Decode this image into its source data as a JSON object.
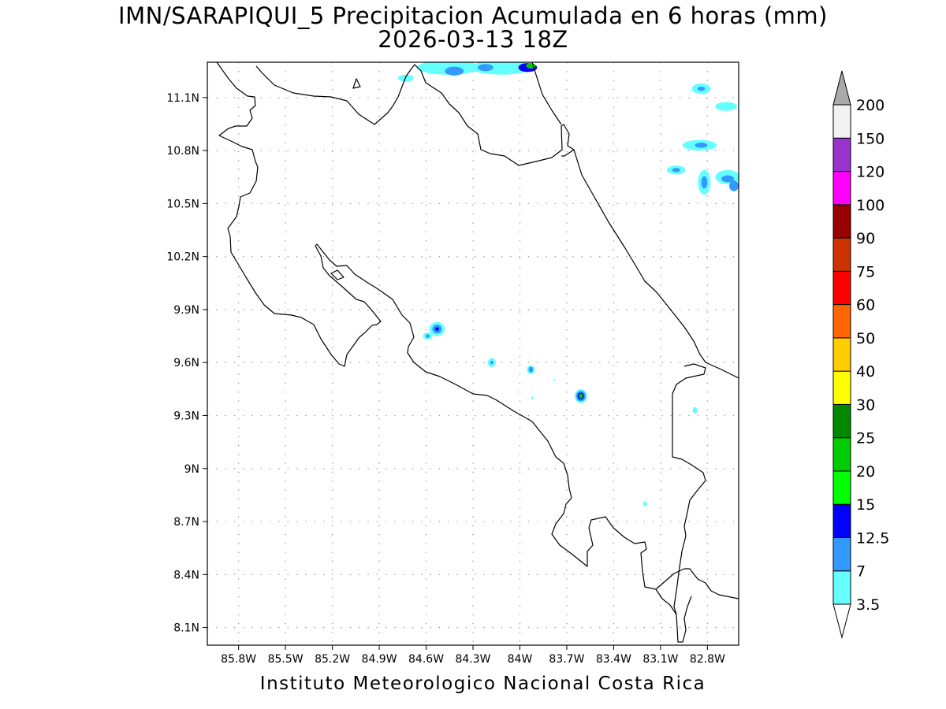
{
  "title_line1": "IMN/SARAPIQUI_5 Precipitacion Acumulada en 6 horas (mm)",
  "title_line2": "2026-03-13 18Z",
  "credit": "Instituto Meteorologico Nacional Costa Rica",
  "map": {
    "lon_range": [
      -86.0,
      -82.6
    ],
    "lat_range": [
      8.0,
      11.3
    ],
    "grid": true,
    "lon_ticks": [
      {
        "value": -85.8,
        "label": "85.8W"
      },
      {
        "value": -85.5,
        "label": "85.5W"
      },
      {
        "value": -85.2,
        "label": "85.2W"
      },
      {
        "value": -84.9,
        "label": "84.9W"
      },
      {
        "value": -84.6,
        "label": "84.6W"
      },
      {
        "value": -84.3,
        "label": "84.3W"
      },
      {
        "value": -84.0,
        "label": "84W"
      },
      {
        "value": -83.7,
        "label": "83.7W"
      },
      {
        "value": -83.4,
        "label": "83.4W"
      },
      {
        "value": -83.1,
        "label": "83.1W"
      },
      {
        "value": -82.8,
        "label": "82.8W"
      }
    ],
    "lat_ticks": [
      {
        "value": 11.1,
        "label": "11.1N"
      },
      {
        "value": 10.8,
        "label": "10.8N"
      },
      {
        "value": 10.5,
        "label": "10.5N"
      },
      {
        "value": 10.2,
        "label": "10.2N"
      },
      {
        "value": 9.9,
        "label": "9.9N"
      },
      {
        "value": 9.6,
        "label": "9.6N"
      },
      {
        "value": 9.3,
        "label": "9.3N"
      },
      {
        "value": 9.0,
        "label": "9N"
      },
      {
        "value": 8.7,
        "label": "8.7N"
      },
      {
        "value": 8.4,
        "label": "8.4N"
      },
      {
        "value": 8.1,
        "label": "8.1N"
      }
    ],
    "precip_cells": [
      {
        "lon": -84.46,
        "lat": 11.27,
        "rx": 0.2,
        "ry": 0.04,
        "level": 0
      },
      {
        "lon": -84.12,
        "lat": 11.27,
        "rx": 0.2,
        "ry": 0.04,
        "level": 0
      },
      {
        "lon": -84.42,
        "lat": 11.25,
        "rx": 0.06,
        "ry": 0.025,
        "level": 1
      },
      {
        "lon": -84.22,
        "lat": 11.27,
        "rx": 0.05,
        "ry": 0.02,
        "level": 1
      },
      {
        "lon": -83.95,
        "lat": 11.27,
        "rx": 0.06,
        "ry": 0.025,
        "level": 2
      },
      {
        "lon": -83.93,
        "lat": 11.28,
        "rx": 0.03,
        "ry": 0.015,
        "level": 4
      },
      {
        "lon": -84.73,
        "lat": 11.21,
        "rx": 0.05,
        "ry": 0.02,
        "level": 0
      },
      {
        "lon": -82.84,
        "lat": 11.15,
        "rx": 0.06,
        "ry": 0.03,
        "level": 0
      },
      {
        "lon": -82.84,
        "lat": 11.15,
        "rx": 0.025,
        "ry": 0.012,
        "level": 1
      },
      {
        "lon": -82.68,
        "lat": 11.05,
        "rx": 0.07,
        "ry": 0.025,
        "level": 0
      },
      {
        "lon": -82.85,
        "lat": 10.83,
        "rx": 0.11,
        "ry": 0.03,
        "level": 0
      },
      {
        "lon": -82.84,
        "lat": 10.83,
        "rx": 0.04,
        "ry": 0.015,
        "level": 1
      },
      {
        "lon": -83.0,
        "lat": 10.69,
        "rx": 0.06,
        "ry": 0.025,
        "level": 0
      },
      {
        "lon": -83.0,
        "lat": 10.69,
        "rx": 0.025,
        "ry": 0.012,
        "level": 1
      },
      {
        "lon": -82.82,
        "lat": 10.62,
        "rx": 0.04,
        "ry": 0.07,
        "level": 0
      },
      {
        "lon": -82.82,
        "lat": 10.62,
        "rx": 0.02,
        "ry": 0.035,
        "level": 1
      },
      {
        "lon": -82.67,
        "lat": 10.65,
        "rx": 0.08,
        "ry": 0.04,
        "level": 0
      },
      {
        "lon": -82.67,
        "lat": 10.64,
        "rx": 0.04,
        "ry": 0.02,
        "level": 1
      },
      {
        "lon": -82.63,
        "lat": 10.6,
        "rx": 0.03,
        "ry": 0.03,
        "level": 1
      },
      {
        "lon": -84.53,
        "lat": 9.79,
        "rx": 0.05,
        "ry": 0.04,
        "level": 0
      },
      {
        "lon": -84.53,
        "lat": 9.79,
        "rx": 0.03,
        "ry": 0.025,
        "level": 1
      },
      {
        "lon": -84.53,
        "lat": 9.79,
        "rx": 0.012,
        "ry": 0.01,
        "level": 2
      },
      {
        "lon": -84.59,
        "lat": 9.75,
        "rx": 0.03,
        "ry": 0.02,
        "level": 0
      },
      {
        "lon": -84.59,
        "lat": 9.75,
        "rx": 0.012,
        "ry": 0.01,
        "level": 1
      },
      {
        "lon": -84.18,
        "lat": 9.6,
        "rx": 0.025,
        "ry": 0.025,
        "level": 0
      },
      {
        "lon": -84.18,
        "lat": 9.6,
        "rx": 0.01,
        "ry": 0.01,
        "level": 1
      },
      {
        "lon": -83.93,
        "lat": 9.56,
        "rx": 0.025,
        "ry": 0.025,
        "level": 0
      },
      {
        "lon": -83.93,
        "lat": 9.56,
        "rx": 0.014,
        "ry": 0.016,
        "level": 1
      },
      {
        "lon": -83.61,
        "lat": 9.41,
        "rx": 0.04,
        "ry": 0.04,
        "level": 0
      },
      {
        "lon": -83.61,
        "lat": 9.41,
        "rx": 0.03,
        "ry": 0.03,
        "level": 1
      },
      {
        "lon": -83.61,
        "lat": 9.41,
        "rx": 0.02,
        "ry": 0.02,
        "level": 2
      },
      {
        "lon": -83.61,
        "lat": 9.41,
        "rx": 0.012,
        "ry": 0.014,
        "level": 4
      },
      {
        "lon": -82.88,
        "lat": 9.33,
        "rx": 0.015,
        "ry": 0.018,
        "level": 0
      },
      {
        "lon": -83.2,
        "lat": 8.8,
        "rx": 0.012,
        "ry": 0.015,
        "level": 0
      },
      {
        "lon": -83.92,
        "lat": 9.4,
        "rx": 0.006,
        "ry": 0.008,
        "level": 0
      },
      {
        "lon": -83.78,
        "lat": 9.5,
        "rx": 0.005,
        "ry": 0.007,
        "level": 0
      }
    ]
  },
  "colorbar": {
    "colors": [
      "#66ffff",
      "#3399ff",
      "#0000ff",
      "#00ff00",
      "#00cc00",
      "#008800",
      "#ffff00",
      "#ffcc00",
      "#ff6600",
      "#ff0000",
      "#cc3300",
      "#990000",
      "#ff00ff",
      "#9933cc",
      "#f2f2f2",
      "#aaaaaa"
    ],
    "labels": [
      "3.5",
      "7",
      "12.5",
      "15",
      "20",
      "25",
      "30",
      "40",
      "50",
      "60",
      "75",
      "90",
      "100",
      "120",
      "150",
      "200"
    ]
  }
}
